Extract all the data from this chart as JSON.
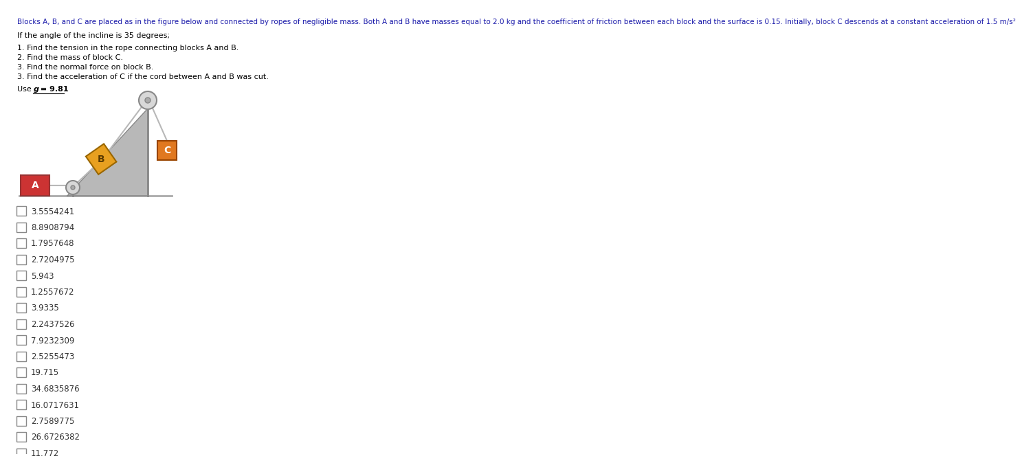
{
  "title_line1": "Blocks A, B, and C are placed as in the figure below and connected by ropes of negligible mass. Both A and B have masses equal to 2.0 kg and the coefficient of friction between each block and the surface is 0.15. Initially, block C descends at a constant acceleration of 1.5 m/s²",
  "subtitle": "If the angle of the incline is 35 degrees;",
  "questions": [
    "1. Find the tension in the rope connecting blocks A and B.",
    "2. Find the mass of block C.",
    "3. Find the normal force on block B.",
    "3. Find the acceleration of C if the cord between A and B was cut."
  ],
  "choices": [
    "3.5554241",
    "8.8908794",
    "1.7957648",
    "2.7204975",
    "5.943",
    "1.2557672",
    "3.9335",
    "2.2437526",
    "7.9232309",
    "2.5255473",
    "19.715",
    "34.6835876",
    "16.0717631",
    "2.7589775",
    "26.6726382",
    "11.772"
  ],
  "bg_color": "#ffffff",
  "block_A_color": "#cc3333",
  "block_B_color": "#e8a020",
  "block_C_color": "#e07820",
  "incline_color": "#b8b8b8",
  "rope_color": "#b8b8b8",
  "pulley_face": "#d8d8d8",
  "pulley_edge": "#888888",
  "ground_color": "#aaaaaa",
  "text_color": "#000000",
  "header_color": "#1a1aaa",
  "choice_color": "#333333"
}
